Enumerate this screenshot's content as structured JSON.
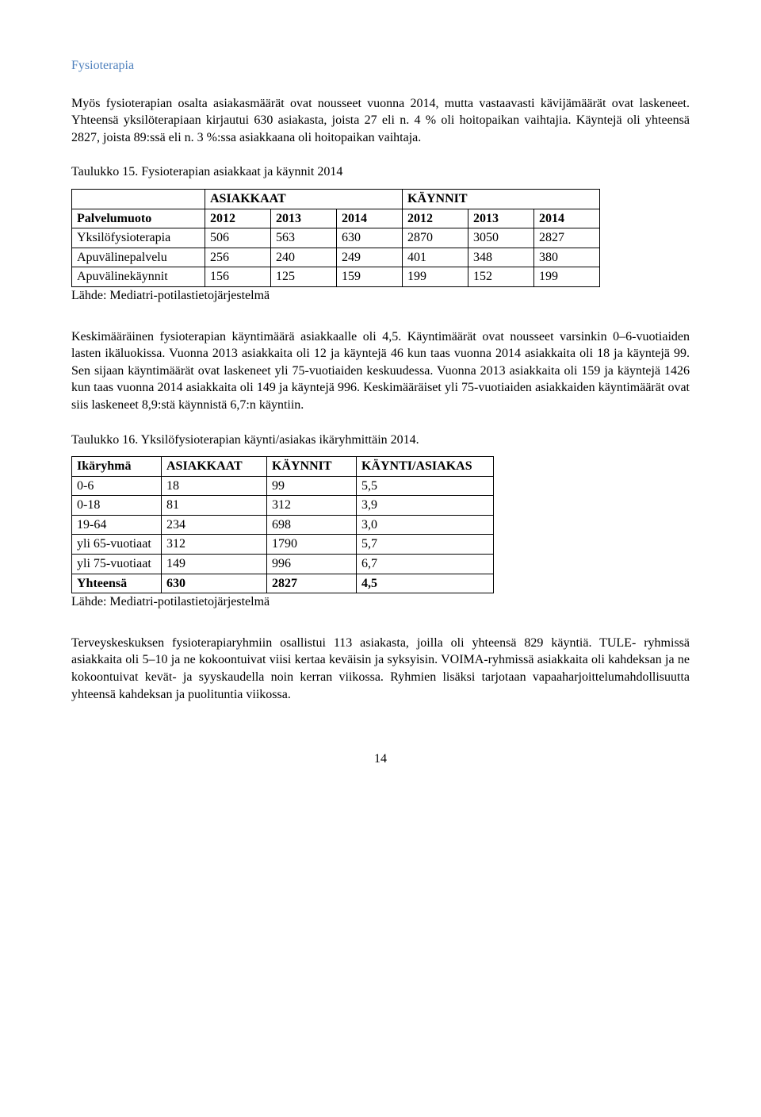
{
  "section_title": "Fysioterapia",
  "para1": "Myös fysioterapian osalta asiakasmäärät ovat nousseet vuonna 2014, mutta vastaavasti kävijämäärät ovat laskeneet. Yhteensä yksilöterapiaan kirjautui 630 asiakasta, joista 27 eli n. 4 % oli hoitopaikan vaihtajia. Käyntejä oli yhteensä 2827, joista 89:ssä eli n. 3 %:ssa asiakkaana oli hoitopaikan vaihtaja.",
  "table15": {
    "caption": "Taulukko 15. Fysioterapian asiakkaat ja käynnit 2014",
    "group_headers": [
      "",
      "ASIAKKAAT",
      "KÄYNNIT"
    ],
    "col_headers": [
      "Palvelumuoto",
      "2012",
      "2013",
      "2014",
      "2012",
      "2013",
      "2014"
    ],
    "rows": [
      [
        "Yksilöfysioterapia",
        "506",
        "563",
        "630",
        "2870",
        "3050",
        "2827"
      ],
      [
        "Apuvälinepalvelu",
        "256",
        "240",
        "249",
        "401",
        "348",
        "380"
      ],
      [
        "Apuvälinekäynnit",
        "156",
        "125",
        "159",
        "199",
        "152",
        "199"
      ]
    ],
    "col_widths": [
      "155px",
      "70px",
      "70px",
      "70px",
      "70px",
      "70px",
      "70px"
    ]
  },
  "source_label": "Lähde: Mediatri-potilastietojärjestelmä",
  "para2": "Keskimääräinen fysioterapian käyntimäärä asiakkaalle oli 4,5. Käyntimäärät ovat nousseet varsinkin 0–6-vuotiaiden lasten ikäluokissa. Vuonna 2013 asiakkaita oli 12 ja käyntejä 46 kun taas vuonna 2014 asiakkaita oli 18 ja käyntejä 99. Sen sijaan käyntimäärät ovat laskeneet yli 75-vuotiaiden keskuudessa. Vuonna 2013 asiakkaita oli 159 ja käyntejä 1426 kun taas vuonna 2014 asiakkaita oli 149 ja käyntejä 996. Keskimääräiset yli 75-vuotiaiden asiakkaiden käyntimäärät ovat siis laskeneet 8,9:stä käynnistä 6,7:n käyntiin.",
  "table16": {
    "caption": "Taulukko 16. Yksilöfysioterapian käynti/asiakas ikäryhmittäin 2014.",
    "col_headers": [
      "Ikäryhmä",
      "ASIAKKAAT",
      "KÄYNNIT",
      "KÄYNTI/ASIAKAS"
    ],
    "rows": [
      [
        "0-6",
        "18",
        "99",
        "5,5"
      ],
      [
        "0-18",
        "81",
        "312",
        "3,9"
      ],
      [
        "19-64",
        "234",
        "698",
        "3,0"
      ],
      [
        "yli 65-vuotiaat",
        "312",
        "1790",
        "5,7"
      ],
      [
        "yli 75-vuotiaat",
        "149",
        "996",
        "6,7"
      ],
      [
        "Yhteensä",
        "630",
        "2827",
        "4,5"
      ]
    ],
    "bold_rows": [
      5
    ],
    "col_widths": [
      "100px",
      "120px",
      "100px",
      "160px"
    ]
  },
  "para3": "Terveyskeskuksen fysioterapiaryhmiin osallistui 113 asiakasta, joilla oli yhteensä 829 käyntiä. TULE- ryhmissä asiakkaita oli 5–10 ja ne kokoontuivat viisi kertaa keväisin ja syksyisin.  VOIMA-ryhmissä asiakkaita oli kahdeksan ja ne kokoontuivat kevät- ja syyskaudella noin kerran viikossa. Ryhmien lisäksi tarjotaan vapaaharjoittelumahdollisuutta yhteensä kahdeksan ja puolituntia viikossa.",
  "page_number": "14"
}
